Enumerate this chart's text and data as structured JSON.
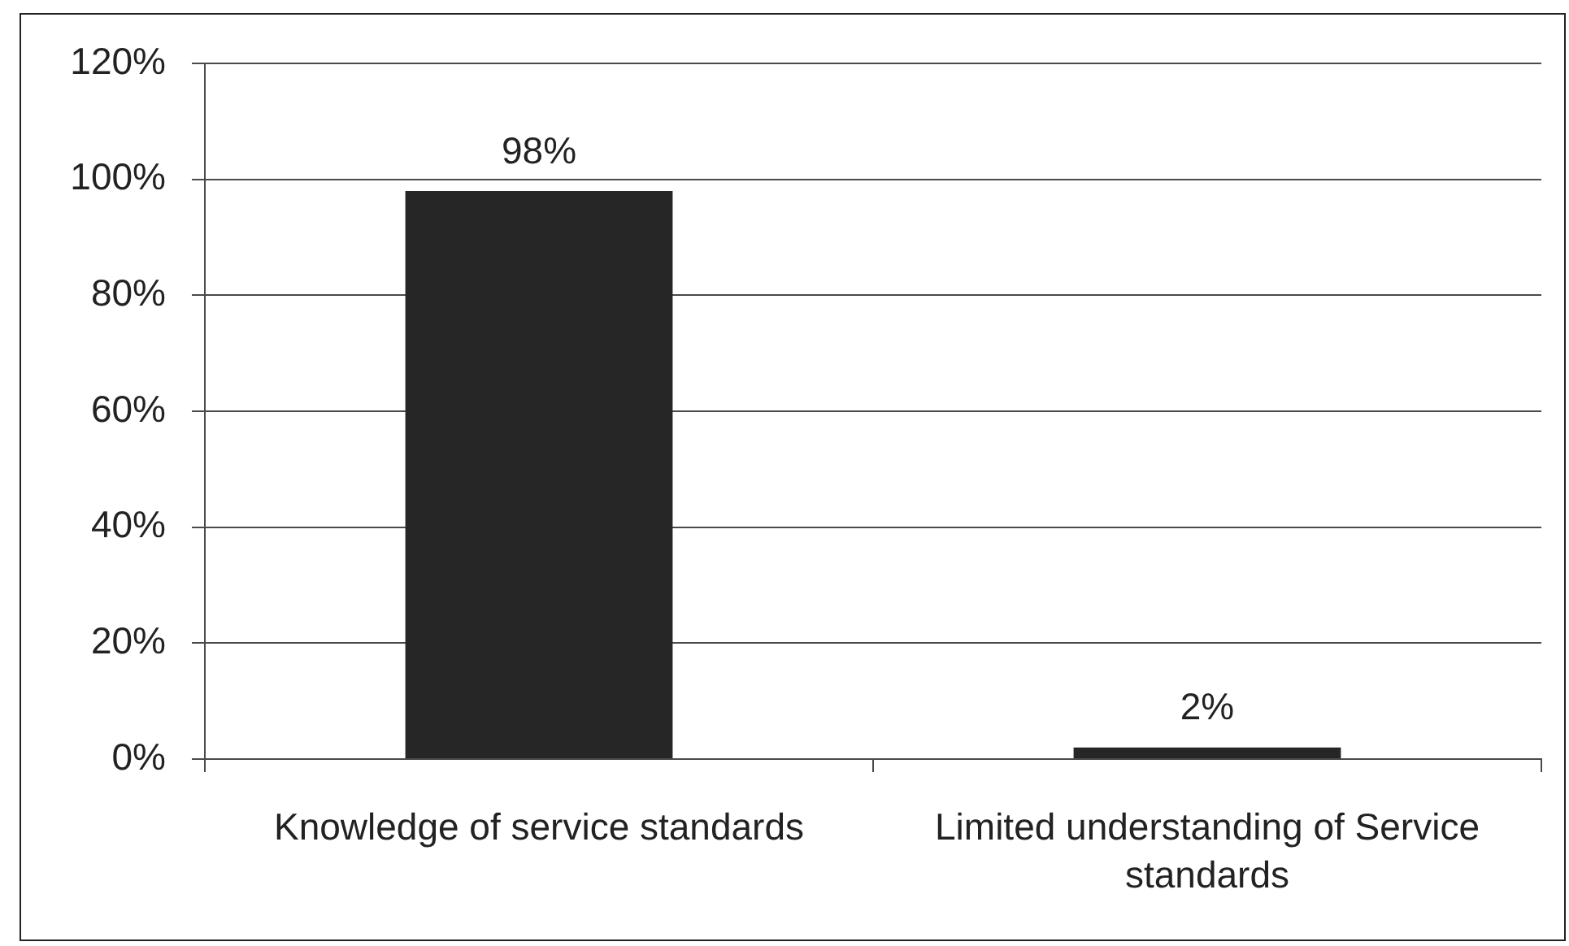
{
  "chart_data": {
    "type": "bar",
    "categories": [
      "Knowledge of service standards",
      "Limited understanding of Service standards"
    ],
    "values": [
      98,
      2
    ],
    "color": "#262626",
    "value_labels": [
      "98%",
      "2%"
    ],
    "ylim": [
      0,
      120
    ],
    "yticks": [
      {
        "value": 0,
        "label": "0%"
      },
      {
        "value": 20,
        "label": "20%"
      },
      {
        "value": 40,
        "label": "40%"
      },
      {
        "value": 60,
        "label": "60%"
      },
      {
        "value": 80,
        "label": "80%"
      },
      {
        "value": 100,
        "label": "100%"
      },
      {
        "value": 120,
        "label": "120%"
      }
    ],
    "grid": "y"
  }
}
